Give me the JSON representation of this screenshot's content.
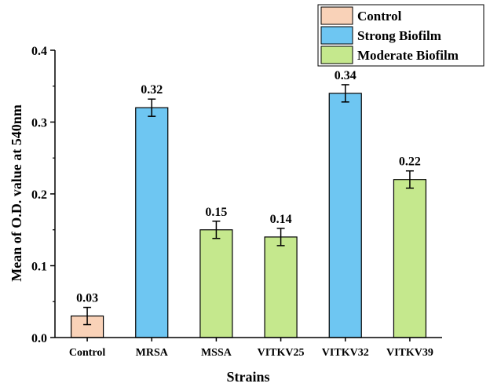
{
  "chart_data": {
    "type": "bar",
    "title": "",
    "xlabel": "Strains",
    "ylabel": "Mean of O.D. value at 540nm",
    "ylim": [
      0,
      0.4
    ],
    "yticks": [
      "0.0",
      "0.1",
      "0.2",
      "0.3",
      "0.4"
    ],
    "ytick_values": [
      0,
      0.1,
      0.2,
      0.3,
      0.4
    ],
    "categories": [
      "Control",
      "MRSA",
      "MSSA",
      "VITKV25",
      "VITKV32",
      "VITKV39"
    ],
    "values": [
      0.03,
      0.32,
      0.15,
      0.14,
      0.34,
      0.22
    ],
    "value_labels": [
      "0.03",
      "0.32",
      "0.15",
      "0.14",
      "0.34",
      "0.22"
    ],
    "errors": [
      0.012,
      0.012,
      0.012,
      0.012,
      0.012,
      0.012
    ],
    "groups": [
      "Control",
      "Strong Biofilm",
      "Moderate Biofilm",
      "Moderate Biofilm",
      "Strong Biofilm",
      "Moderate Biofilm"
    ],
    "grid": false,
    "legend_position": "top-right",
    "legend": [
      {
        "name": "Control",
        "color": "#f9d2b8"
      },
      {
        "name": "Strong Biofilm",
        "color": "#6ec6f2"
      },
      {
        "name": "Moderate Biofilm",
        "color": "#c5e88d"
      }
    ]
  }
}
